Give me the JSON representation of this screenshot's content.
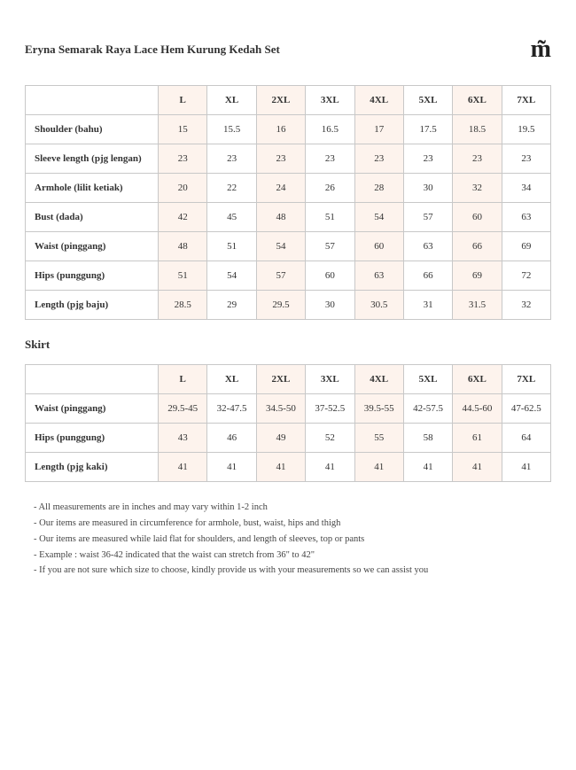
{
  "title": "Eryna Semarak Raya Lace Hem Kurung Kedah Set",
  "logo": "m̃",
  "sizes": [
    "L",
    "XL",
    "2XL",
    "3XL",
    "4XL",
    "5XL",
    "6XL",
    "7XL"
  ],
  "tintCols": [
    0,
    2,
    4,
    6
  ],
  "table1": {
    "rows": [
      {
        "label": "Shoulder (bahu)",
        "vals": [
          "15",
          "15.5",
          "16",
          "16.5",
          "17",
          "17.5",
          "18.5",
          "19.5"
        ]
      },
      {
        "label": "Sleeve length (pjg lengan)",
        "vals": [
          "23",
          "23",
          "23",
          "23",
          "23",
          "23",
          "23",
          "23"
        ]
      },
      {
        "label": "Armhole (lilit ketiak)",
        "vals": [
          "20",
          "22",
          "24",
          "26",
          "28",
          "30",
          "32",
          "34"
        ]
      },
      {
        "label": "Bust (dada)",
        "vals": [
          "42",
          "45",
          "48",
          "51",
          "54",
          "57",
          "60",
          "63"
        ]
      },
      {
        "label": "Waist (pinggang)",
        "vals": [
          "48",
          "51",
          "54",
          "57",
          "60",
          "63",
          "66",
          "69"
        ]
      },
      {
        "label": "Hips (punggung)",
        "vals": [
          "51",
          "54",
          "57",
          "60",
          "63",
          "66",
          "69",
          "72"
        ]
      },
      {
        "label": "Length (pjg baju)",
        "vals": [
          "28.5",
          "29",
          "29.5",
          "30",
          "30.5",
          "31",
          "31.5",
          "32"
        ]
      }
    ]
  },
  "table2": {
    "title": "Skirt",
    "rows": [
      {
        "label": "Waist (pinggang)",
        "vals": [
          "29.5-45",
          "32-47.5",
          "34.5-50",
          "37-52.5",
          "39.5-55",
          "42-57.5",
          "44.5-60",
          "47-62.5"
        ]
      },
      {
        "label": "Hips (punggung)",
        "vals": [
          "43",
          "46",
          "49",
          "52",
          "55",
          "58",
          "61",
          "64"
        ]
      },
      {
        "label": "Length (pjg kaki)",
        "vals": [
          "41",
          "41",
          "41",
          "41",
          "41",
          "41",
          "41",
          "41"
        ]
      }
    ]
  },
  "notes": [
    "- All measurements are in inches and may vary within 1-2 inch",
    "- Our items are measured in circumference for armhole, bust, waist, hips and thigh",
    "- Our items are measured while laid flat for shoulders, and length of sleeves, top or pants",
    "- Example : waist 36-42 indicated that the waist can stretch from 36\" to 42\"",
    "- If you are not sure which size to choose, kindly provide us with your measurements so we can assist you"
  ]
}
